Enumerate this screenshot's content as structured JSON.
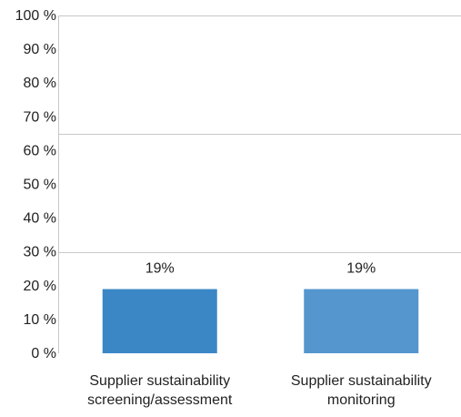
{
  "chart_data": {
    "type": "bar",
    "categories": [
      [
        "Supplier sustainability",
        "screening/assessment"
      ],
      [
        "Supplier sustainability",
        "monitoring"
      ]
    ],
    "values": [
      19,
      19
    ],
    "data_labels": [
      "19%",
      "19%"
    ],
    "y_ticks": [
      0,
      10,
      20,
      30,
      40,
      50,
      60,
      70,
      80,
      90,
      100
    ],
    "y_tick_labels": [
      "0 %",
      "10 %",
      "20 %",
      "30 %",
      "40 %",
      "50 %",
      "60 %",
      "70 %",
      "80 %",
      "90 %",
      "100 %"
    ],
    "ylim": [
      0,
      100
    ],
    "grid_lines_at": [
      30,
      65,
      100
    ],
    "title": "",
    "xlabel": "",
    "ylabel": "",
    "colors": [
      "#3b87c6",
      "#5596cf"
    ],
    "grid_color": "#c8c8c8",
    "legend": "none"
  }
}
